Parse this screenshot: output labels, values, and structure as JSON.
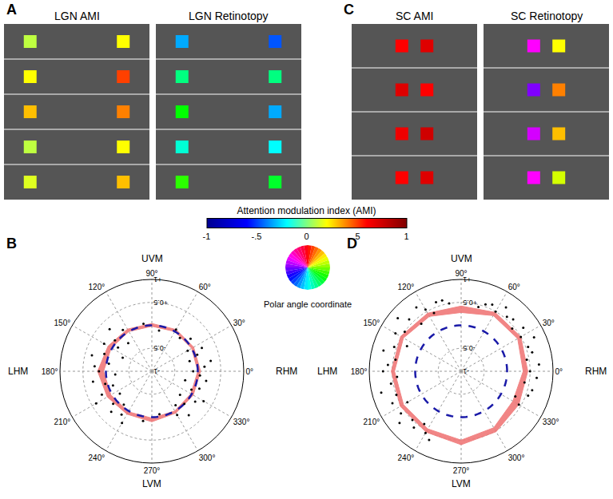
{
  "chart_data": [
    {
      "type": "image_panel",
      "panel": "A",
      "tiles": [
        {
          "title": "LGN AMI",
          "type": "ami",
          "left": [
            0.1,
            0.2,
            0.3,
            0.1,
            0.15
          ],
          "right": [
            0.2,
            0.5,
            0.4,
            0.2,
            0.3
          ]
        },
        {
          "title": "LGN Retinotopy",
          "type": "retinotopy",
          "left": [
            250,
            300,
            330,
            280,
            340
          ],
          "right": [
            230,
            300,
            250,
            270,
            320
          ]
        }
      ]
    },
    {
      "type": "image_panel",
      "panel": "C",
      "tiles": [
        {
          "title": "SC AMI",
          "type": "ami",
          "left": [
            0.6,
            0.7,
            0.65,
            0.6
          ],
          "right": [
            0.7,
            0.6,
            0.75,
            0.7
          ]
        },
        {
          "title": "SC Retinotopy",
          "type": "retinotopy",
          "left": [
            150,
            180,
            160,
            150
          ],
          "right": [
            30,
            60,
            45,
            20
          ]
        }
      ]
    },
    {
      "type": "colorbar",
      "title": "Attention modulation index (AMI)",
      "xlim": [
        -1,
        1
      ],
      "xticks": [
        -1,
        {
          "value": -0.5,
          "label": "-.5"
        },
        0,
        {
          "value": 0.5,
          "label": ".5"
        },
        1
      ],
      "colors": [
        "#000090",
        "#0000ff",
        "#00ffff",
        "#ffff00",
        "#ff0000",
        "#800000"
      ]
    },
    {
      "type": "color_wheel",
      "title": "Polar angle coordinate"
    },
    {
      "type": "polar",
      "panel": "B",
      "ylim": [
        -1,
        1
      ],
      "yticks": [
        {
          "value": -1,
          "label": "-1"
        },
        {
          "value": -0.5,
          "label": "-0.5"
        },
        {
          "value": 0.5,
          "label": "+0.5"
        },
        {
          "value": 1,
          "label": "+1"
        }
      ],
      "xticks": [
        {
          "value": 0,
          "label": "0°"
        },
        {
          "value": 30,
          "label": "30°"
        },
        {
          "value": 60,
          "label": "60°"
        },
        {
          "value": 90,
          "label": "90°"
        },
        {
          "value": 120,
          "label": "120°"
        },
        {
          "value": 150,
          "label": "150°"
        },
        {
          "value": 180,
          "label": "180°"
        },
        {
          "value": 210,
          "label": "210°"
        },
        {
          "value": 240,
          "label": "240°"
        },
        {
          "value": 270,
          "label": "270°"
        },
        {
          "value": 300,
          "label": "300°"
        },
        {
          "value": 330,
          "label": "330°"
        }
      ],
      "axis_labels": [
        {
          "value": 90,
          "label": "UVM"
        },
        {
          "value": 180,
          "label": "LHM"
        },
        {
          "value": 270,
          "label": "LVM"
        },
        {
          "value": 0,
          "label": "RHM"
        }
      ],
      "series": [
        {
          "type": "scatter",
          "color": "#000000",
          "theta": [
            125,
            130,
            135,
            140,
            145,
            150,
            155,
            160,
            165,
            170,
            175,
            180,
            185,
            190,
            195,
            200,
            205,
            210,
            215,
            220,
            225,
            230,
            235,
            240,
            300,
            305,
            310,
            315,
            320,
            325,
            330,
            335,
            340,
            345,
            350,
            355,
            0,
            5,
            10,
            15,
            20,
            25,
            30,
            40,
            50,
            60,
            100,
            80,
            260,
            280
          ],
          "r": [
            0.1,
            -0.2,
            0.3,
            0.05,
            -0.1,
            0.2,
            -0.3,
            0.1,
            0.35,
            -0.05,
            0.25,
            0.15,
            -0.2,
            0.3,
            0.05,
            -0.1,
            0.2,
            0.4,
            -0.15,
            0.1,
            0.25,
            -0.05,
            0.15,
            0.3,
            0.1,
            -0.1,
            0.25,
            0.0,
            -0.2,
            0.15,
            0.3,
            -0.05,
            0.1,
            -0.25,
            0.2,
            0.05,
            -0.1,
            0.15,
            0.3,
            -0.15,
            0.05,
            0.2,
            -0.1,
            0.1,
            -0.05,
            0.05,
            0.05,
            -0.1,
            0.1,
            -0.05
          ]
        },
        {
          "type": "band",
          "color": "#f07878",
          "theta": [
            0,
            30,
            60,
            90,
            120,
            150,
            180,
            210,
            240,
            270,
            300,
            330
          ],
          "lower": [
            0.0,
            0.0,
            0.0,
            -0.02,
            0.0,
            0.02,
            0.05,
            0.03,
            0.02,
            0.02,
            0.0,
            -0.02
          ],
          "upper": [
            0.06,
            0.05,
            0.05,
            0.04,
            0.06,
            0.1,
            0.18,
            0.12,
            0.08,
            0.1,
            0.05,
            0.04
          ]
        },
        {
          "type": "line",
          "line_style": "dashed",
          "color": "#1a1aa8",
          "r": 0
        }
      ]
    },
    {
      "type": "polar",
      "panel": "D",
      "ylim": [
        -1,
        1
      ],
      "yticks": [
        {
          "value": -1,
          "label": "-1"
        },
        {
          "value": -0.5,
          "label": "-0.5"
        },
        {
          "value": 0.5,
          "label": "+0.5"
        },
        {
          "value": 1,
          "label": "+1"
        }
      ],
      "xticks": [
        {
          "value": 0,
          "label": "0°"
        },
        {
          "value": 30,
          "label": "30°"
        },
        {
          "value": 60,
          "label": "60°"
        },
        {
          "value": 90,
          "label": "90°"
        },
        {
          "value": 120,
          "label": "120°"
        },
        {
          "value": 150,
          "label": "150°"
        },
        {
          "value": 180,
          "label": "180°"
        },
        {
          "value": 210,
          "label": "210°"
        },
        {
          "value": 240,
          "label": "240°"
        },
        {
          "value": 270,
          "label": "270°"
        },
        {
          "value": 300,
          "label": "300°"
        },
        {
          "value": 330,
          "label": "330°"
        }
      ],
      "axis_labels": [
        {
          "value": 90,
          "label": "UVM"
        },
        {
          "value": 180,
          "label": "LHM"
        },
        {
          "value": 270,
          "label": "LVM"
        },
        {
          "value": 0,
          "label": "RHM"
        }
      ],
      "series": [
        {
          "type": "scatter",
          "color": "#000000",
          "theta": [
            110,
            115,
            120,
            125,
            130,
            135,
            140,
            145,
            150,
            155,
            160,
            165,
            170,
            175,
            180,
            185,
            190,
            195,
            200,
            205,
            210,
            215,
            220,
            225,
            230,
            235,
            240,
            245,
            330,
            335,
            340,
            345,
            350,
            355,
            0,
            5,
            10,
            15,
            20,
            25,
            30,
            35,
            40,
            45,
            50,
            55,
            60,
            65,
            70,
            75,
            100,
            105
          ],
          "r": [
            0.6,
            0.4,
            0.55,
            0.7,
            0.35,
            0.6,
            0.8,
            0.5,
            0.65,
            0.3,
            0.55,
            0.75,
            0.45,
            0.6,
            0.7,
            0.4,
            0.55,
            0.8,
            0.5,
            0.65,
            0.35,
            0.6,
            0.75,
            0.5,
            0.6,
            0.4,
            0.55,
            0.65,
            0.45,
            0.3,
            0.55,
            0.6,
            0.4,
            0.65,
            0.5,
            0.7,
            0.45,
            0.6,
            0.55,
            0.75,
            0.5,
            0.65,
            0.45,
            0.6,
            0.55,
            0.7,
            0.5,
            0.6,
            0.55,
            0.45,
            0.5,
            0.6
          ]
        },
        {
          "type": "band",
          "color": "#f07878",
          "theta": [
            0,
            30,
            60,
            90,
            120,
            150,
            180,
            210,
            240,
            270,
            300,
            330
          ],
          "lower": [
            0.35,
            0.42,
            0.4,
            0.28,
            0.38,
            0.45,
            0.45,
            0.45,
            0.45,
            0.5,
            0.42,
            0.3
          ],
          "upper": [
            0.45,
            0.5,
            0.48,
            0.42,
            0.46,
            0.52,
            0.52,
            0.53,
            0.53,
            0.6,
            0.52,
            0.45
          ]
        },
        {
          "type": "line",
          "line_style": "dashed",
          "color": "#1a1aa8",
          "r": 0
        }
      ]
    }
  ]
}
